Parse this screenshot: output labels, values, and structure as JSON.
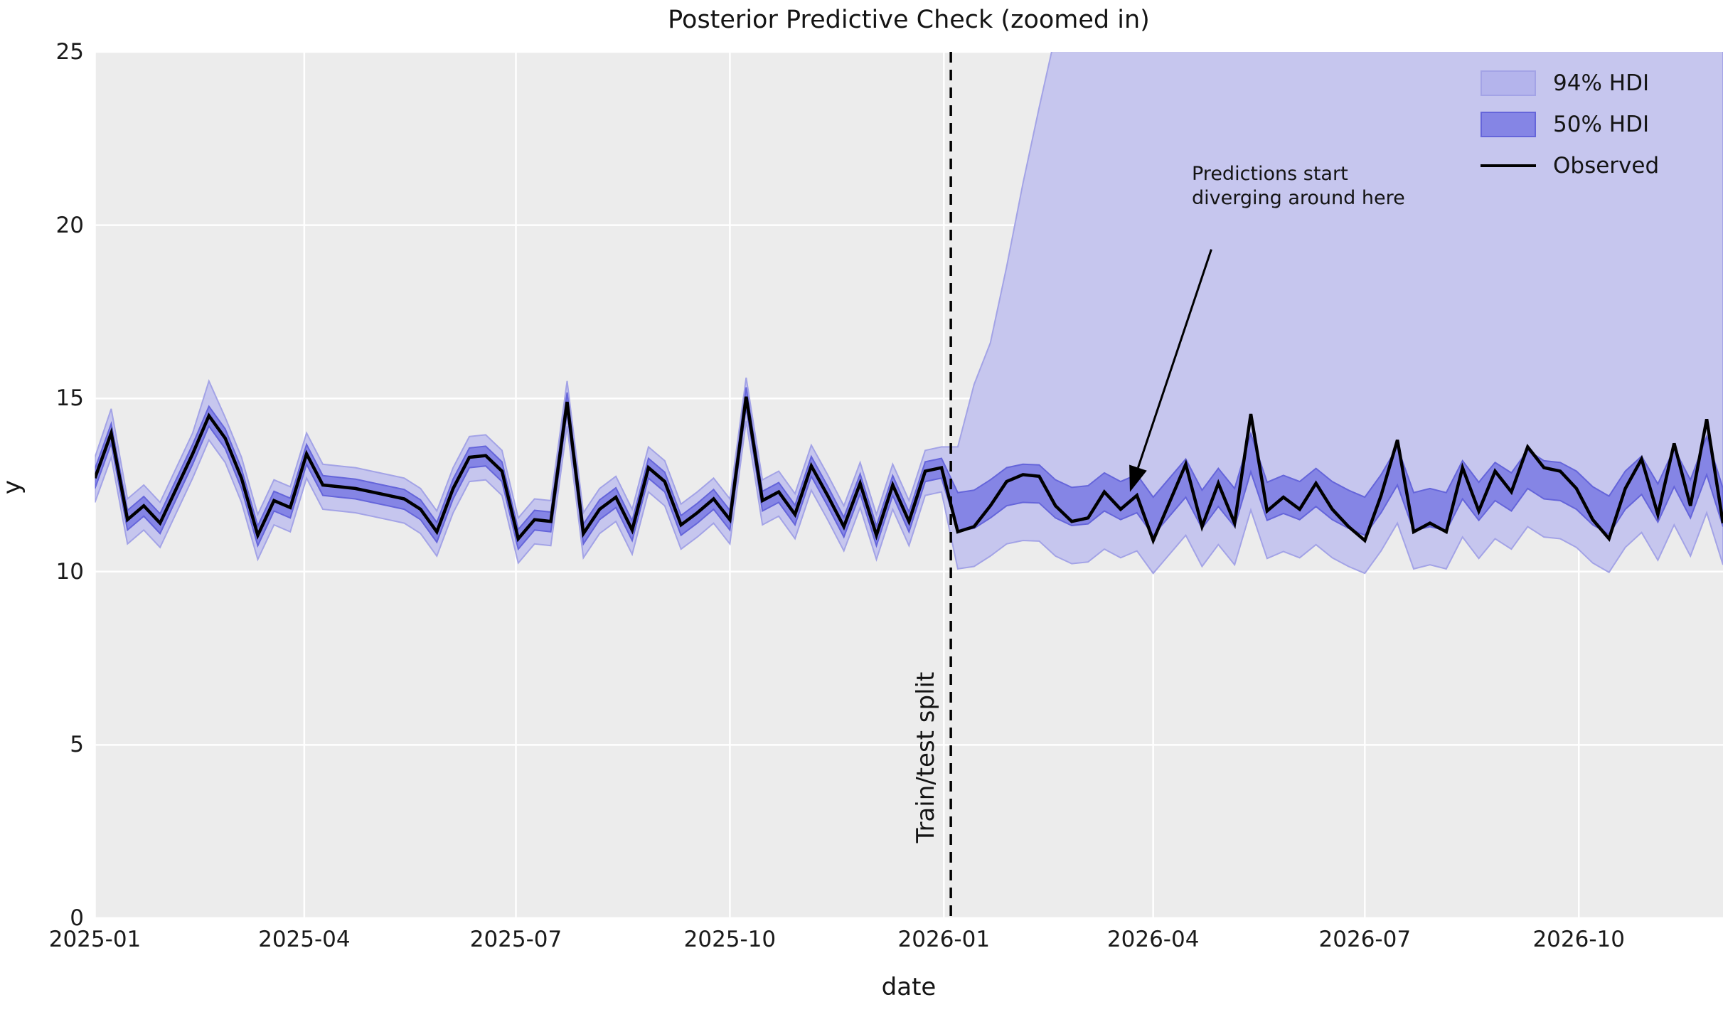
{
  "figure": {
    "title": "Posterior Predictive Check (zoomed in)",
    "xlabel": "date",
    "ylabel": "y"
  },
  "annotations": {
    "diverge_line1": "Predictions start",
    "diverge_line2": "diverging around here",
    "split_label": "Train/test split"
  },
  "legend": {
    "position": "upper right",
    "items": [
      {
        "label": "94% HDI",
        "swatch": "patch-light"
      },
      {
        "label": "50% HDI",
        "swatch": "patch-dark"
      },
      {
        "label": "Observed",
        "swatch": "line"
      }
    ]
  },
  "colors": {
    "axes_background": "#ececec",
    "grid": "#ffffff",
    "observed_line": "#000000",
    "hdi94_fill": "#c6c6ee",
    "hdi94_edge": "#a3a3e6",
    "hdi50_fill": "#8585e5",
    "hdi50_edge": "#6565da",
    "split_line": "#000000",
    "text": "#141414"
  },
  "chart_data": {
    "type": "line",
    "title": "Posterior Predictive Check (zoomed in)",
    "xlabel": "date",
    "ylabel": "y",
    "ylim": [
      0,
      25
    ],
    "xlim_days": [
      0,
      700
    ],
    "grid": true,
    "y_ticks": [
      0,
      5,
      10,
      15,
      20,
      25
    ],
    "x_ticks": [
      {
        "label": "2025-01",
        "day": 0
      },
      {
        "label": "2025-04",
        "day": 90
      },
      {
        "label": "2025-07",
        "day": 181
      },
      {
        "label": "2025-10",
        "day": 273
      },
      {
        "label": "2026-01",
        "day": 365
      },
      {
        "label": "2026-04",
        "day": 455
      },
      {
        "label": "2026-07",
        "day": 546
      },
      {
        "label": "2026-10",
        "day": 638
      }
    ],
    "split_day": 368,
    "arrow": {
      "from_day": 480,
      "from_y": 19.3,
      "to_day": 445,
      "to_y": 12.3
    },
    "x_dates": [
      "2025-01-01",
      "2025-01-08",
      "2025-01-15",
      "2025-01-22",
      "2025-01-29",
      "2025-02-05",
      "2025-02-12",
      "2025-02-19",
      "2025-02-26",
      "2025-03-05",
      "2025-03-12",
      "2025-03-19",
      "2025-03-26",
      "2025-04-02",
      "2025-04-09",
      "2025-04-16",
      "2025-04-23",
      "2025-04-30",
      "2025-05-07",
      "2025-05-14",
      "2025-05-21",
      "2025-05-28",
      "2025-06-04",
      "2025-06-11",
      "2025-06-18",
      "2025-06-25",
      "2025-07-02",
      "2025-07-09",
      "2025-07-16",
      "2025-07-23",
      "2025-07-30",
      "2025-08-06",
      "2025-08-13",
      "2025-08-20",
      "2025-08-27",
      "2025-09-03",
      "2025-09-10",
      "2025-09-17",
      "2025-09-24",
      "2025-10-01",
      "2025-10-08",
      "2025-10-15",
      "2025-10-22",
      "2025-10-29",
      "2025-11-05",
      "2025-11-12",
      "2025-11-19",
      "2025-11-26",
      "2025-12-03",
      "2025-12-10",
      "2025-12-17",
      "2025-12-24",
      "2025-12-31",
      "2026-01-07",
      "2026-01-14",
      "2026-01-21",
      "2026-01-28",
      "2026-02-04",
      "2026-02-11",
      "2026-02-18",
      "2026-02-25",
      "2026-03-04",
      "2026-03-11",
      "2026-03-18",
      "2026-03-25",
      "2026-04-01",
      "2026-04-08",
      "2026-04-15",
      "2026-04-22",
      "2026-04-29",
      "2026-05-06",
      "2026-05-13",
      "2026-05-20",
      "2026-05-27",
      "2026-06-03",
      "2026-06-10",
      "2026-06-17",
      "2026-06-24",
      "2026-07-01",
      "2026-07-08",
      "2026-07-15",
      "2026-07-22",
      "2026-07-29",
      "2026-08-05",
      "2026-08-12",
      "2026-08-19",
      "2026-08-26",
      "2026-09-02",
      "2026-09-09",
      "2026-09-16",
      "2026-09-23",
      "2026-09-30",
      "2026-10-07",
      "2026-10-14",
      "2026-10-21",
      "2026-10-28",
      "2026-11-04",
      "2026-11-11",
      "2026-11-18",
      "2026-11-25",
      "2026-12-02"
    ],
    "observed": [
      12.7,
      14.0,
      11.5,
      11.9,
      11.4,
      12.4,
      13.4,
      14.5,
      13.85,
      12.7,
      11.05,
      12.05,
      11.85,
      13.4,
      12.5,
      12.45,
      12.4,
      12.3,
      12.2,
      12.1,
      11.8,
      11.15,
      12.4,
      13.3,
      13.35,
      12.9,
      10.95,
      11.5,
      11.45,
      14.9,
      11.1,
      11.8,
      12.15,
      11.2,
      13.0,
      12.6,
      11.35,
      11.7,
      12.1,
      11.5,
      15.05,
      12.05,
      12.3,
      11.65,
      13.05,
      12.2,
      11.3,
      12.55,
      11.05,
      12.5,
      11.45,
      12.9,
      13.0,
      11.15,
      11.3,
      11.9,
      12.6,
      12.8,
      12.75,
      11.9,
      11.45,
      11.55,
      12.3,
      11.8,
      12.2,
      10.9,
      12.0,
      13.1,
      11.3,
      12.55,
      11.4,
      14.55,
      11.75,
      12.15,
      11.8,
      12.55,
      11.8,
      11.3,
      10.9,
      12.2,
      13.8,
      11.15,
      11.4,
      11.15,
      13.0,
      11.75,
      12.9,
      12.3,
      13.6,
      13.0,
      12.9,
      12.4,
      11.5,
      10.95,
      12.4,
      13.25,
      11.65,
      13.7,
      11.9,
      14.4,
      11.4
    ],
    "hdi50_upper": [
      12.97,
      14.27,
      11.77,
      12.17,
      11.67,
      12.67,
      13.67,
      14.77,
      14.12,
      12.97,
      11.32,
      12.32,
      12.12,
      13.67,
      12.77,
      12.72,
      12.67,
      12.57,
      12.47,
      12.37,
      12.07,
      11.42,
      12.67,
      13.57,
      13.62,
      13.17,
      11.22,
      11.77,
      11.72,
      15.17,
      11.37,
      12.07,
      12.42,
      11.47,
      13.27,
      12.87,
      11.62,
      11.97,
      12.37,
      11.77,
      15.32,
      12.32,
      12.57,
      11.92,
      13.32,
      12.47,
      11.57,
      12.82,
      11.32,
      12.77,
      11.72,
      13.17,
      13.27,
      12.28,
      12.35,
      12.65,
      13.0,
      13.1,
      13.08,
      12.65,
      12.43,
      12.48,
      12.85,
      12.6,
      12.8,
      12.15,
      12.7,
      13.25,
      12.35,
      12.98,
      12.4,
      13.98,
      12.58,
      12.78,
      12.6,
      12.98,
      12.6,
      12.35,
      12.15,
      12.8,
      13.6,
      12.28,
      12.4,
      12.28,
      13.2,
      12.58,
      13.15,
      12.85,
      13.5,
      13.2,
      13.15,
      12.9,
      12.45,
      12.18,
      12.9,
      13.33,
      12.53,
      13.55,
      12.65,
      13.9,
      12.4
    ],
    "hdi50_lower": [
      12.4,
      13.7,
      11.2,
      11.6,
      11.1,
      12.1,
      13.1,
      14.2,
      13.55,
      12.4,
      10.75,
      11.75,
      11.55,
      13.1,
      12.2,
      12.15,
      12.1,
      12.0,
      11.9,
      11.8,
      11.5,
      10.85,
      12.1,
      13.0,
      13.05,
      12.6,
      10.65,
      11.2,
      11.15,
      14.6,
      10.8,
      11.5,
      11.85,
      10.9,
      12.7,
      12.3,
      11.05,
      11.4,
      11.8,
      11.2,
      14.75,
      11.75,
      12.0,
      11.35,
      12.75,
      11.9,
      11.0,
      12.25,
      10.75,
      12.2,
      11.15,
      12.6,
      12.7,
      11.18,
      11.25,
      11.55,
      11.9,
      12.0,
      11.98,
      11.55,
      11.33,
      11.38,
      11.75,
      11.5,
      11.7,
      11.05,
      11.6,
      12.15,
      11.25,
      11.88,
      11.3,
      12.88,
      11.48,
      11.68,
      11.5,
      11.88,
      11.5,
      11.25,
      11.05,
      11.7,
      12.5,
      11.18,
      11.3,
      11.18,
      12.1,
      11.48,
      12.05,
      11.75,
      12.4,
      12.1,
      12.05,
      11.8,
      11.35,
      11.08,
      11.8,
      12.23,
      11.43,
      12.45,
      11.55,
      12.8,
      11.3
    ],
    "hdi94_upper": [
      13.3,
      14.7,
      12.1,
      12.5,
      12.0,
      13.0,
      14.0,
      15.5,
      14.45,
      13.3,
      11.65,
      12.65,
      12.45,
      14.0,
      13.1,
      13.05,
      13.0,
      12.9,
      12.8,
      12.7,
      12.4,
      11.75,
      13.0,
      13.9,
      13.95,
      13.5,
      11.55,
      12.1,
      12.05,
      15.5,
      11.7,
      12.4,
      12.75,
      11.8,
      13.6,
      13.2,
      11.95,
      12.3,
      12.7,
      12.1,
      15.6,
      12.65,
      12.9,
      12.25,
      13.65,
      12.8,
      11.9,
      13.15,
      11.65,
      13.1,
      12.05,
      13.5,
      13.6,
      13.6,
      15.4,
      16.6,
      18.8,
      21.2,
      23.4,
      25.5,
      26.8,
      27.8,
      28.6,
      30,
      30,
      30,
      30,
      30,
      30,
      30,
      30,
      30,
      30,
      30,
      30,
      30,
      30,
      30,
      30,
      30,
      30,
      30,
      30,
      30,
      30,
      30,
      30,
      30,
      30,
      30,
      30,
      30,
      30,
      30,
      30,
      30,
      30,
      30,
      30,
      30,
      30
    ],
    "hdi94_lower": [
      12.0,
      13.3,
      10.8,
      11.2,
      10.7,
      11.7,
      12.7,
      13.8,
      13.15,
      12.0,
      10.35,
      11.35,
      11.15,
      12.7,
      11.8,
      11.75,
      11.7,
      11.6,
      11.5,
      11.4,
      11.1,
      10.45,
      11.7,
      12.6,
      12.65,
      12.2,
      10.25,
      10.8,
      10.75,
      14.2,
      10.4,
      11.1,
      11.45,
      10.5,
      12.3,
      11.9,
      10.65,
      11.0,
      11.4,
      10.8,
      14.35,
      11.35,
      11.6,
      10.95,
      12.35,
      11.5,
      10.6,
      11.85,
      10.35,
      11.8,
      10.75,
      12.2,
      12.3,
      10.08,
      10.15,
      10.45,
      10.8,
      10.9,
      10.88,
      10.45,
      10.23,
      10.28,
      10.65,
      10.4,
      10.6,
      9.95,
      10.5,
      11.05,
      10.15,
      10.78,
      10.2,
      11.78,
      10.38,
      10.58,
      10.4,
      10.78,
      10.4,
      10.15,
      9.95,
      10.6,
      11.4,
      10.08,
      10.2,
      10.08,
      11.0,
      10.38,
      10.95,
      10.65,
      11.3,
      11.0,
      10.95,
      10.7,
      10.25,
      9.98,
      10.7,
      11.13,
      10.33,
      11.35,
      10.45,
      11.7,
      10.2
    ]
  }
}
